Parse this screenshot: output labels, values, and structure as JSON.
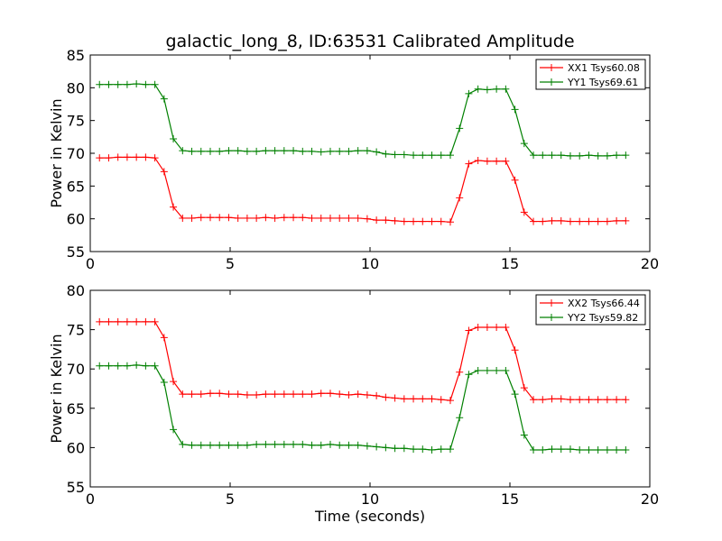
{
  "title": "galactic_long_8, ID:63531 Calibrated Amplitude",
  "chart_data": [
    {
      "type": "line",
      "ylabel": "Power in Kelvin",
      "xlabel": "",
      "xlim": [
        0,
        20
      ],
      "ylim": [
        55,
        85
      ],
      "xticks": [
        "0",
        "5",
        "10",
        "15",
        "20"
      ],
      "yticks": [
        "55",
        "60",
        "65",
        "70",
        "75",
        "80",
        "85"
      ],
      "legend_position": "top-right",
      "x": [
        0.33,
        0.66,
        0.99,
        1.32,
        1.65,
        1.98,
        2.31,
        2.64,
        2.97,
        3.3,
        3.63,
        3.96,
        4.29,
        4.62,
        4.95,
        5.28,
        5.61,
        5.94,
        6.27,
        6.6,
        6.93,
        7.26,
        7.59,
        7.92,
        8.25,
        8.58,
        8.91,
        9.24,
        9.57,
        9.9,
        10.23,
        10.56,
        10.89,
        11.22,
        11.55,
        11.88,
        12.21,
        12.54,
        12.87,
        13.2,
        13.53,
        13.86,
        14.19,
        14.52,
        14.85,
        15.18,
        15.51,
        15.84,
        16.17,
        16.5,
        16.83,
        17.16,
        17.49,
        17.82,
        18.15,
        18.48,
        18.81,
        19.14
      ],
      "series": [
        {
          "name": "XX1 Tsys60.08",
          "color": "#ff0000",
          "values": [
            69.3,
            69.3,
            69.4,
            69.4,
            69.4,
            69.4,
            69.3,
            67.2,
            61.8,
            60.1,
            60.1,
            60.2,
            60.2,
            60.2,
            60.2,
            60.1,
            60.1,
            60.1,
            60.2,
            60.1,
            60.2,
            60.2,
            60.2,
            60.1,
            60.1,
            60.1,
            60.1,
            60.1,
            60.1,
            60.0,
            59.8,
            59.8,
            59.7,
            59.6,
            59.6,
            59.6,
            59.6,
            59.6,
            59.5,
            63.2,
            68.4,
            68.9,
            68.8,
            68.8,
            68.8,
            65.9,
            61.0,
            59.6,
            59.6,
            59.7,
            59.7,
            59.6,
            59.6,
            59.6,
            59.6,
            59.6,
            59.7,
            59.7
          ]
        },
        {
          "name": "YY1 Tsys69.61",
          "color": "#008000",
          "values": [
            80.5,
            80.5,
            80.5,
            80.5,
            80.6,
            80.5,
            80.5,
            78.3,
            72.2,
            70.4,
            70.3,
            70.3,
            70.3,
            70.3,
            70.4,
            70.4,
            70.3,
            70.3,
            70.4,
            70.4,
            70.4,
            70.4,
            70.3,
            70.3,
            70.2,
            70.3,
            70.3,
            70.3,
            70.4,
            70.4,
            70.2,
            69.9,
            69.8,
            69.8,
            69.7,
            69.7,
            69.7,
            69.7,
            69.7,
            73.8,
            79.1,
            79.8,
            79.7,
            79.8,
            79.8,
            76.7,
            71.5,
            69.7,
            69.7,
            69.7,
            69.7,
            69.6,
            69.6,
            69.7,
            69.6,
            69.6,
            69.7,
            69.7
          ]
        }
      ]
    },
    {
      "type": "line",
      "ylabel": "Power in Kelvin",
      "xlabel": "Time (seconds)",
      "xlim": [
        0,
        20
      ],
      "ylim": [
        55,
        80
      ],
      "xticks": [
        "0",
        "5",
        "10",
        "15",
        "20"
      ],
      "yticks": [
        "55",
        "60",
        "65",
        "70",
        "75",
        "80"
      ],
      "legend_position": "top-right",
      "x": [
        0.33,
        0.66,
        0.99,
        1.32,
        1.65,
        1.98,
        2.31,
        2.64,
        2.97,
        3.3,
        3.63,
        3.96,
        4.29,
        4.62,
        4.95,
        5.28,
        5.61,
        5.94,
        6.27,
        6.6,
        6.93,
        7.26,
        7.59,
        7.92,
        8.25,
        8.58,
        8.91,
        9.24,
        9.57,
        9.9,
        10.23,
        10.56,
        10.89,
        11.22,
        11.55,
        11.88,
        12.21,
        12.54,
        12.87,
        13.2,
        13.53,
        13.86,
        14.19,
        14.52,
        14.85,
        15.18,
        15.51,
        15.84,
        16.17,
        16.5,
        16.83,
        17.16,
        17.49,
        17.82,
        18.15,
        18.48,
        18.81,
        19.14
      ],
      "series": [
        {
          "name": "XX2 Tsys66.44",
          "color": "#ff0000",
          "values": [
            76.0,
            76.0,
            76.0,
            76.0,
            76.0,
            76.0,
            76.0,
            74.0,
            68.4,
            66.8,
            66.8,
            66.8,
            66.9,
            66.9,
            66.8,
            66.8,
            66.7,
            66.7,
            66.8,
            66.8,
            66.8,
            66.8,
            66.8,
            66.8,
            66.9,
            66.9,
            66.8,
            66.7,
            66.8,
            66.7,
            66.6,
            66.4,
            66.3,
            66.2,
            66.2,
            66.2,
            66.2,
            66.1,
            66.0,
            69.6,
            74.9,
            75.3,
            75.3,
            75.3,
            75.3,
            72.4,
            67.6,
            66.1,
            66.1,
            66.2,
            66.2,
            66.1,
            66.1,
            66.1,
            66.1,
            66.1,
            66.1,
            66.1
          ]
        },
        {
          "name": "YY2 Tsys59.82",
          "color": "#008000",
          "values": [
            70.4,
            70.4,
            70.4,
            70.4,
            70.5,
            70.4,
            70.4,
            68.3,
            62.3,
            60.4,
            60.3,
            60.3,
            60.3,
            60.3,
            60.3,
            60.3,
            60.3,
            60.4,
            60.4,
            60.4,
            60.4,
            60.4,
            60.4,
            60.3,
            60.3,
            60.4,
            60.3,
            60.3,
            60.3,
            60.2,
            60.1,
            60.0,
            59.9,
            59.9,
            59.8,
            59.8,
            59.7,
            59.8,
            59.8,
            63.8,
            69.3,
            69.8,
            69.8,
            69.8,
            69.8,
            66.8,
            61.6,
            59.7,
            59.7,
            59.8,
            59.8,
            59.8,
            59.7,
            59.7,
            59.7,
            59.7,
            59.7,
            59.7
          ]
        }
      ]
    }
  ]
}
